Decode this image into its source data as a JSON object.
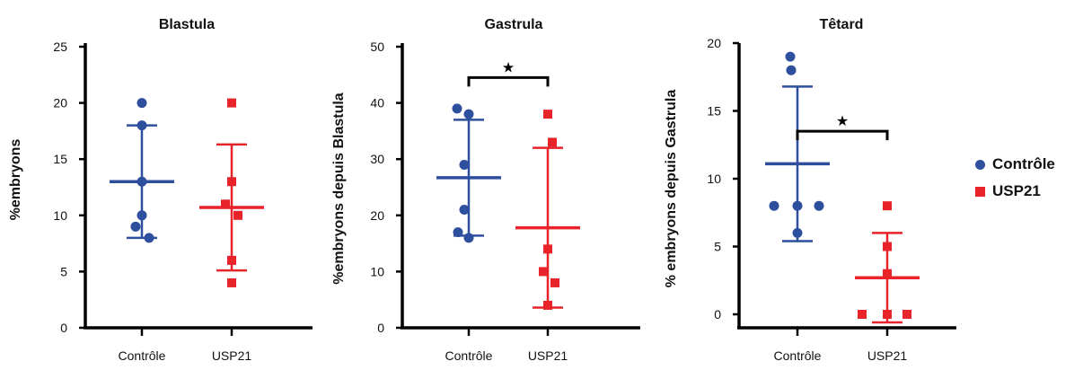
{
  "colors": {
    "control": "#2d4f9e",
    "usp21": "#e8232a",
    "axis": "#000000",
    "text": "#111111"
  },
  "legend": {
    "placement": "right",
    "items": [
      {
        "label": "Contrôle",
        "color": "#2d4f9e",
        "marker": "circle"
      },
      {
        "label": "USP21",
        "color": "#e8232a",
        "marker": "square"
      }
    ]
  },
  "chart_data": [
    {
      "type": "scatter",
      "title": "Blastula",
      "xlabel": "",
      "ylabel": "%embryons",
      "categories": [
        "Contrôle",
        "USP21"
      ],
      "ylim": [
        0,
        25
      ],
      "yticks": [
        0,
        5,
        10,
        15,
        20,
        25
      ],
      "grid": false,
      "series": [
        {
          "name": "Contrôle",
          "marker": "circle",
          "color": "#2d4f9e",
          "values": [
            20,
            18,
            13,
            10,
            9,
            8
          ],
          "mean": 13,
          "sd": 5
        },
        {
          "name": "USP21",
          "marker": "square",
          "color": "#e8232a",
          "values": [
            20,
            13,
            11,
            10,
            6,
            4
          ],
          "mean": 10.7,
          "sd": 5.6
        }
      ],
      "significance": []
    },
    {
      "type": "scatter",
      "title": "Gastrula",
      "xlabel": "",
      "ylabel": "%embryons depuis Blastula",
      "categories": [
        "Contrôle",
        "USP21"
      ],
      "ylim": [
        0,
        50
      ],
      "yticks": [
        0,
        10,
        20,
        30,
        40,
        50
      ],
      "grid": false,
      "series": [
        {
          "name": "Contrôle",
          "marker": "circle",
          "color": "#2d4f9e",
          "values": [
            39,
            38,
            29,
            21,
            17,
            16
          ],
          "mean": 26.7,
          "sd": 10.3
        },
        {
          "name": "USP21",
          "marker": "square",
          "color": "#e8232a",
          "values": [
            38,
            33,
            14,
            10,
            8,
            4
          ],
          "mean": 17.8,
          "sd": 14.2
        }
      ],
      "significance": [
        {
          "from": 0,
          "to": 1,
          "y": 44.5,
          "label": "★"
        }
      ]
    },
    {
      "type": "scatter",
      "title": "Têtard",
      "xlabel": "",
      "ylabel": "% embryons depuis Gastrula",
      "categories": [
        "Contrôle",
        "USP21"
      ],
      "ylim": [
        -1,
        20
      ],
      "yticks": [
        0,
        5,
        10,
        15,
        20
      ],
      "grid": false,
      "series": [
        {
          "name": "Contrôle",
          "marker": "circle",
          "color": "#2d4f9e",
          "values": [
            19,
            18,
            8,
            8,
            8,
            6
          ],
          "mean": 11.1,
          "sd": 5.7
        },
        {
          "name": "USP21",
          "marker": "square",
          "color": "#e8232a",
          "values": [
            8,
            5,
            3,
            0,
            0,
            0
          ],
          "mean": 2.7,
          "sd": 3.3
        }
      ],
      "significance": [
        {
          "from": 0,
          "to": 1,
          "y": 13.5,
          "label": "★"
        }
      ]
    }
  ]
}
